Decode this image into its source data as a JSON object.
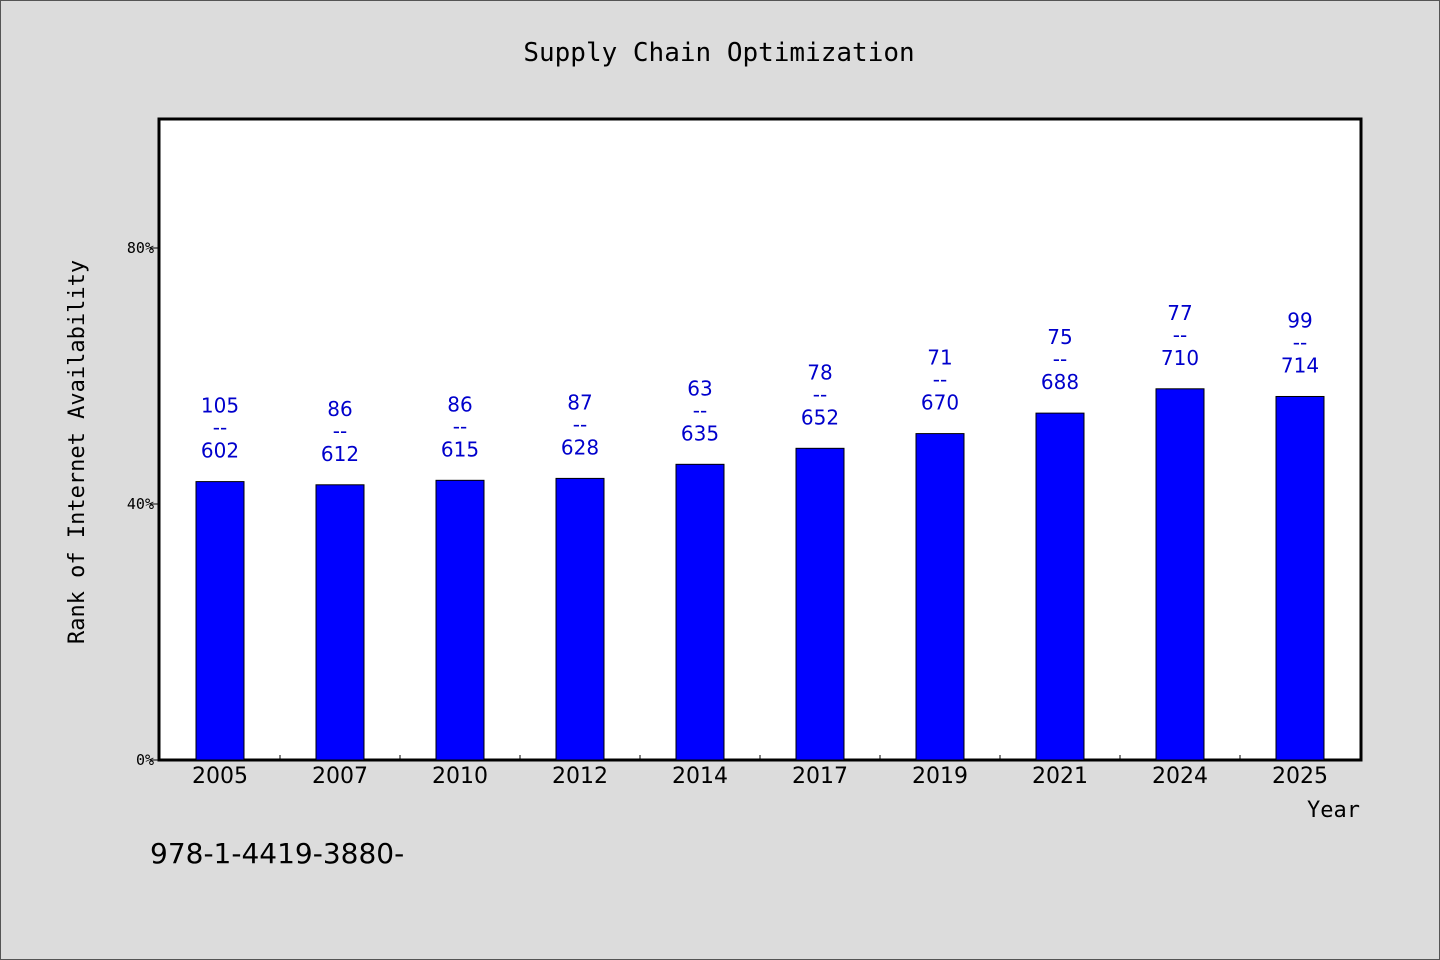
{
  "chart_data": {
    "type": "bar",
    "title": "Supply Chain Optimization",
    "xlabel": "Year",
    "ylabel": "Rank of Internet Availability",
    "ylim": [
      0,
      100
    ],
    "yticks": [
      0,
      40,
      80
    ],
    "ytick_labels": [
      "0%",
      "40%",
      "80%"
    ],
    "grid": false,
    "categories": [
      "2005",
      "2007",
      "2010",
      "2012",
      "2014",
      "2017",
      "2019",
      "2021",
      "2024",
      "2025"
    ],
    "values": [
      43.5,
      43,
      43.7,
      44,
      46.2,
      48.7,
      51,
      54.2,
      58,
      56.8
    ],
    "label_top": [
      "105",
      "86",
      "86",
      "87",
      "63",
      "78",
      "71",
      "75",
      "77",
      "99"
    ],
    "label_bottom": [
      "602",
      "612",
      "615",
      "628",
      "635",
      "652",
      "670",
      "688",
      "710",
      "714"
    ],
    "label_separator": "--",
    "bar_color": "#0000ff",
    "label_color": "#0000cc"
  },
  "footnote": "978-1-4419-3880-"
}
